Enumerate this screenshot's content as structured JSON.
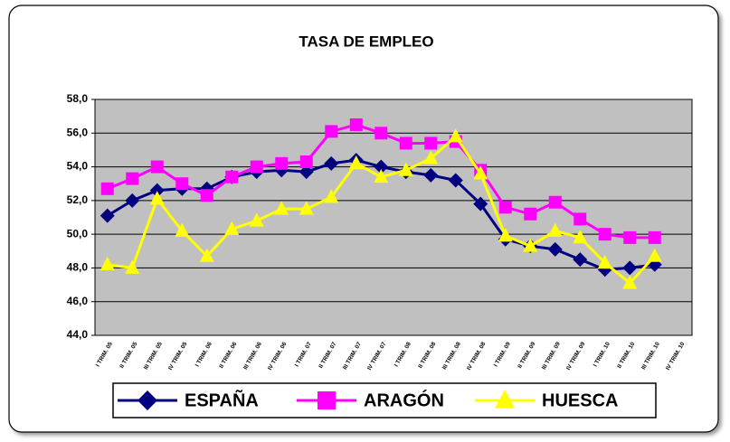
{
  "chart_data": {
    "type": "line",
    "title": "TASA DE EMPLEO",
    "categories": [
      "I TRIM. 05",
      "II TRIM. 05",
      "III TRIM. 05",
      "IV TRIM. 05",
      "I TRIM. 06",
      "II TRIM. 06",
      "III TRIM. 06",
      "IV TRIM. 06",
      "I TRIM. 07",
      "II TRIM. 07",
      "III TRIM. 07",
      "IV TRIM. 07",
      "I TRIM. 08",
      "II TRIM. 08",
      "III TRIM. 08",
      "IV TRIM. 08",
      "I TRIM. 09",
      "II TRIM. 09",
      "III TRIM. 09",
      "IV TRIM. 09",
      "I TRIM. 10",
      "II TRIM. 10",
      "III TRIM. 10",
      "IV TRIM. 10"
    ],
    "series": [
      {
        "name": "ESPAÑA",
        "color": "#000080",
        "marker": "diamond",
        "values": [
          51.1,
          52.0,
          52.6,
          52.7,
          52.7,
          53.4,
          53.7,
          53.8,
          53.7,
          54.2,
          54.4,
          54.0,
          53.7,
          53.5,
          53.2,
          51.8,
          49.7,
          49.3,
          49.1,
          48.5,
          47.9,
          48.0,
          48.2,
          null
        ]
      },
      {
        "name": "ARAGÓN",
        "color": "#FF00FF",
        "marker": "square",
        "values": [
          52.7,
          53.3,
          54.0,
          53.0,
          52.3,
          53.4,
          54.0,
          54.2,
          54.3,
          56.1,
          56.5,
          56.0,
          55.4,
          55.4,
          55.5,
          53.8,
          51.6,
          51.2,
          51.9,
          50.9,
          50.0,
          49.8,
          49.8,
          null
        ]
      },
      {
        "name": "HUESCA",
        "color": "#FFFF00",
        "marker": "triangle",
        "values": [
          48.2,
          48.0,
          52.1,
          50.2,
          48.7,
          50.3,
          50.8,
          51.5,
          51.5,
          52.2,
          54.2,
          53.4,
          53.8,
          54.5,
          55.8,
          53.6,
          49.9,
          49.3,
          50.2,
          49.8,
          48.3,
          47.1,
          48.7,
          null
        ]
      }
    ],
    "ylim": [
      44,
      58
    ],
    "yticks": [
      {
        "value": 44,
        "label": "44,0"
      },
      {
        "value": 46,
        "label": "46,0"
      },
      {
        "value": 48,
        "label": "48,0"
      },
      {
        "value": 50,
        "label": "50,0"
      },
      {
        "value": 52,
        "label": "52,0"
      },
      {
        "value": 54,
        "label": "54,0"
      },
      {
        "value": 56,
        "label": "56,0"
      },
      {
        "value": 58,
        "label": "58,0"
      }
    ],
    "grid": true,
    "plot_background": "#C0C0C0",
    "legend": "bottom"
  }
}
